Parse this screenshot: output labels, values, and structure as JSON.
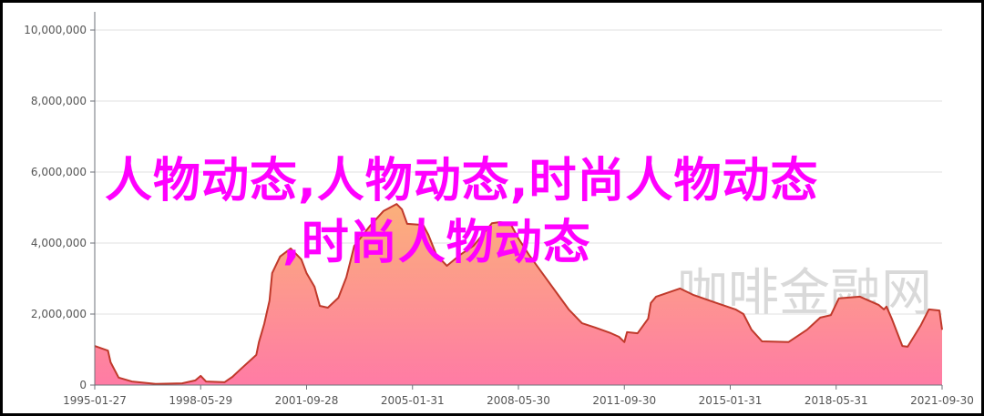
{
  "chart_data": {
    "type": "area",
    "title": "",
    "xlabel": "",
    "ylabel": "",
    "ylim": [
      0,
      10000000
    ],
    "grid": true,
    "y_ticks": [
      "0",
      "2,000,000",
      "4,000,000",
      "6,000,000",
      "8,000,000",
      "10,000,000"
    ],
    "y_tick_values": [
      0,
      2000000,
      4000000,
      6000000,
      8000000,
      10000000
    ],
    "x_ticks": [
      "1995-01-27",
      "1998-05-29",
      "2001-09-28",
      "2005-01-31",
      "2008-05-30",
      "2011-09-30",
      "2015-01-31",
      "2018-05-31",
      "2021-09-30"
    ],
    "x_range": [
      "1995-01",
      "2021-09"
    ],
    "colors": {
      "line": "#c0392b",
      "fill_top": "#fbb07a",
      "fill_bottom": "#ff7ba5",
      "grid": "#e0e0e0",
      "axis": "#6e7079"
    },
    "points": [
      [
        "1995-01",
        1100000
      ],
      [
        "1995-06",
        970000
      ],
      [
        "1995-07",
        640000
      ],
      [
        "1995-10",
        210000
      ],
      [
        "1996-03",
        100000
      ],
      [
        "1996-12",
        30000
      ],
      [
        "1997-10",
        50000
      ],
      [
        "1998-03",
        130000
      ],
      [
        "1998-05",
        260000
      ],
      [
        "1998-07",
        100000
      ],
      [
        "1999-02",
        80000
      ],
      [
        "1999-05",
        230000
      ],
      [
        "1999-08",
        440000
      ],
      [
        "2000-02",
        850000
      ],
      [
        "2000-03",
        1210000
      ],
      [
        "2000-05",
        1720000
      ],
      [
        "2000-07",
        2380000
      ],
      [
        "2000-08",
        3150000
      ],
      [
        "2000-11",
        3620000
      ],
      [
        "2001-03",
        3850000
      ],
      [
        "2001-07",
        3540000
      ],
      [
        "2001-09",
        3150000
      ],
      [
        "2001-12",
        2770000
      ],
      [
        "2002-02",
        2230000
      ],
      [
        "2002-05",
        2180000
      ],
      [
        "2002-09",
        2460000
      ],
      [
        "2002-12",
        3030000
      ],
      [
        "2003-03",
        3920000
      ],
      [
        "2003-09",
        4490000
      ],
      [
        "2004-02",
        4900000
      ],
      [
        "2004-07",
        5100000
      ],
      [
        "2004-09",
        4950000
      ],
      [
        "2004-11",
        4540000
      ],
      [
        "2005-05",
        4510000
      ],
      [
        "2005-07",
        4230000
      ],
      [
        "2005-10",
        3670000
      ],
      [
        "2006-02",
        3360000
      ],
      [
        "2006-07",
        3670000
      ],
      [
        "2006-12",
        3920000
      ],
      [
        "2007-07",
        4560000
      ],
      [
        "2007-10",
        4590000
      ],
      [
        "2008-02",
        4540000
      ],
      [
        "2008-05",
        4130000
      ],
      [
        "2008-09",
        3670000
      ],
      [
        "2009-02",
        3150000
      ],
      [
        "2009-07",
        2640000
      ],
      [
        "2009-12",
        2130000
      ],
      [
        "2010-05",
        1740000
      ],
      [
        "2010-10",
        1620000
      ],
      [
        "2011-04",
        1460000
      ],
      [
        "2011-07",
        1360000
      ],
      [
        "2011-09",
        1210000
      ],
      [
        "2011-10",
        1490000
      ],
      [
        "2012-02",
        1460000
      ],
      [
        "2012-06",
        1870000
      ],
      [
        "2012-07",
        2310000
      ],
      [
        "2012-09",
        2490000
      ],
      [
        "2013-06",
        2720000
      ],
      [
        "2013-11",
        2540000
      ],
      [
        "2014-07",
        2330000
      ],
      [
        "2015-03",
        2130000
      ],
      [
        "2015-06",
        2000000
      ],
      [
        "2015-09",
        1560000
      ],
      [
        "2016-01",
        1230000
      ],
      [
        "2016-11",
        1210000
      ],
      [
        "2017-06",
        1560000
      ],
      [
        "2017-11",
        1900000
      ],
      [
        "2018-03",
        1970000
      ],
      [
        "2018-06",
        2440000
      ],
      [
        "2019-02",
        2490000
      ],
      [
        "2019-09",
        2260000
      ],
      [
        "2019-11",
        2130000
      ],
      [
        "2019-12",
        2210000
      ],
      [
        "2020-02",
        1870000
      ],
      [
        "2020-06",
        1100000
      ],
      [
        "2020-08",
        1080000
      ],
      [
        "2021-01",
        1690000
      ],
      [
        "2021-04",
        2130000
      ],
      [
        "2021-08",
        2100000
      ],
      [
        "2021-09",
        1560000
      ]
    ]
  },
  "overlay": {
    "line1": "人物动态,人物动态,时尚人物动态",
    "line2": ",时尚人物动态",
    "color": "#ff00ff"
  },
  "watermark": "咖啡金融网"
}
